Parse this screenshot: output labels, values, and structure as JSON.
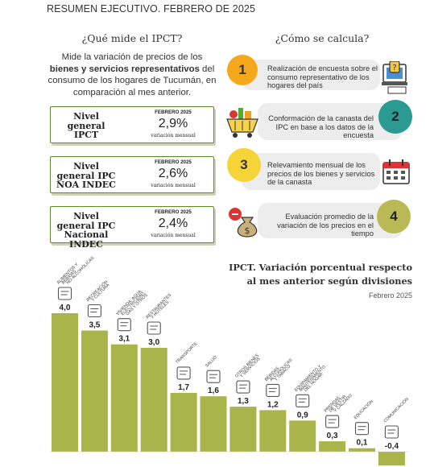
{
  "header": {
    "title": "RESUMEN EJECUTIVO. FEBRERO DE 2025"
  },
  "left": {
    "title": "¿Qué mide el IPCT?",
    "description_pre": "Mide la variación de precios de los ",
    "description_bold": "bienes y servicios representativos",
    "description_post": " del consumo de los hogares de Tucumán, en comparación al mes anterior.",
    "cards": [
      {
        "label": "Nivel general IPCT",
        "month": "FEBRERO 2025",
        "value": "2,9%",
        "variation": "variación mensual"
      },
      {
        "label": "Nivel general IPC NOA INDEC",
        "month": "FEBRERO 2025",
        "value": "2,6%",
        "variation": "variación mensual"
      },
      {
        "label": "Nivel general IPC Nacional INDEC",
        "month": "FEBRERO 2025",
        "value": "2,4%",
        "variation": "variación mensual"
      }
    ]
  },
  "right": {
    "title": "¿Cómo se calcula?",
    "steps": [
      {
        "number": "1",
        "text": "Realización de encuesta sobre el consumo representativo de los hogares del país"
      },
      {
        "number": "2",
        "text": "Conformación de la canasta del IPC en base a los datos de la encuesta"
      },
      {
        "number": "3",
        "text": "Relevamiento mensual de los precios de los bienes y servicios de la canasta"
      },
      {
        "number": "4",
        "text": "Evaluación promedio de la variación de los precios en el tiempo"
      }
    ]
  },
  "colors": {
    "bar": "#a9b44a",
    "green_border": "#5b8c2a",
    "step1": "#f6a81c",
    "step2": "#2a9a92",
    "step3": "#f4d436",
    "step4": "#b9ba55",
    "pill": "#ededed"
  },
  "chart_data": {
    "type": "bar",
    "title": "IPCT. Variación porcentual respecto al mes anterior según divisiones",
    "subtitle": "Febrero 2025",
    "categories": [
      "ALIMENTOS Y BEBIDAS NO ALCOHÓLICAS",
      "RECREACIÓN Y CULTURA",
      "VIVIENDA, AGUA, ELECTRICIDAD, GAS Y OTROS",
      "RESTAURANTES Y HOTELES",
      "TRANSPORTE",
      "SALUD",
      "OTROS BIENES Y SERVICIOS",
      "BEBIDAS ALCOHÓLICAS Y TABACO",
      "EQUIPAMIENTO Y MANTENIMIENTO DEL HOGAR",
      "PRENDAS DE VESTIR Y CALZADO",
      "EDUCACIÓN",
      "COMUNICACIÓN"
    ],
    "values": [
      4.0,
      3.5,
      3.1,
      3.0,
      1.7,
      1.6,
      1.3,
      1.2,
      0.9,
      0.3,
      0.1,
      -0.4
    ],
    "value_labels": [
      "4,0",
      "3,5",
      "3,1",
      "3,0",
      "1,7",
      "1,6",
      "1,3",
      "1,2",
      "0,9",
      "0,3",
      "0,1",
      "-0,4"
    ],
    "icons": [
      "food-basket-icon",
      "camera-icon",
      "electric-bill-icon",
      "hotel-bell-icon",
      "bus-icon",
      "hospital-icon",
      "package-icon",
      "bottle-icon",
      "appliance-icon",
      "clothing-icon",
      "document-icon",
      "phone-icon"
    ]
  }
}
